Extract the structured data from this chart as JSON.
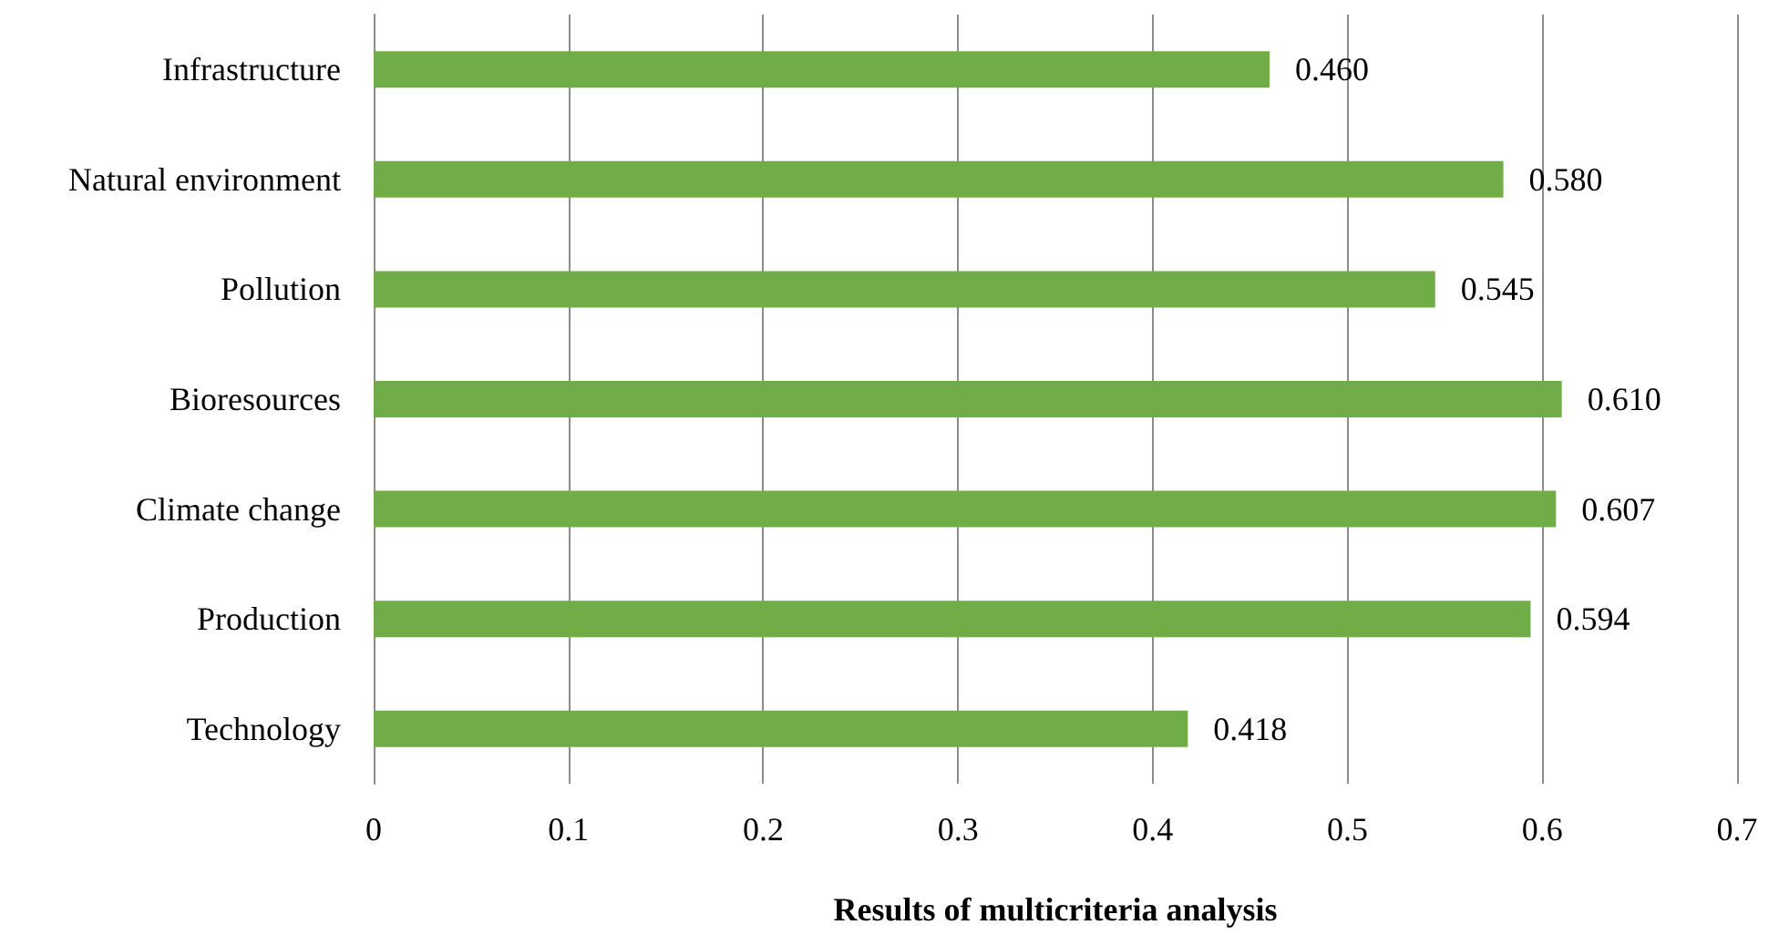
{
  "chart_data": {
    "type": "bar",
    "orientation": "horizontal",
    "xlabel": "Results of multicriteria analysis",
    "categories": [
      "Infrastructure",
      "Natural environment",
      "Pollution",
      "Bioresources",
      "Climate change",
      "Production",
      "Technology"
    ],
    "values": [
      0.46,
      0.58,
      0.545,
      0.61,
      0.607,
      0.594,
      0.418
    ],
    "value_labels": [
      "0.460",
      "0.580",
      "0.545",
      "0.610",
      "0.607",
      "0.594",
      "0.418"
    ],
    "color": "#70ad47",
    "xlim": [
      0,
      0.7
    ],
    "xticks": [
      0,
      0.1,
      0.2,
      0.3,
      0.4,
      0.5,
      0.6,
      0.7
    ],
    "grid": "x"
  }
}
